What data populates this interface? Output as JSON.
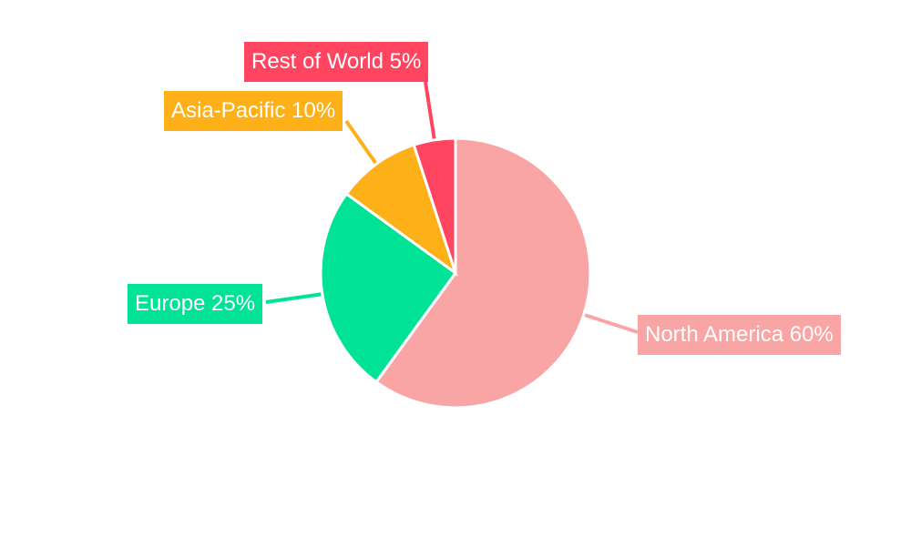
{
  "chart_data": {
    "type": "pie",
    "start_angle": "top, clockwise",
    "legend": "none",
    "slices": [
      {
        "label": "North America",
        "value": 60,
        "display": "North America 60%",
        "color": "#F9A5A5"
      },
      {
        "label": "Europe",
        "value": 25,
        "display": "Europe 25%",
        "color": "#00E396"
      },
      {
        "label": "Asia-Pacific",
        "value": 10,
        "display": "Asia-Pacific 10%",
        "color": "#FEB019"
      },
      {
        "label": "Rest of World",
        "value": 5,
        "display": "Rest of World 5%",
        "color": "#FF4560"
      }
    ]
  }
}
